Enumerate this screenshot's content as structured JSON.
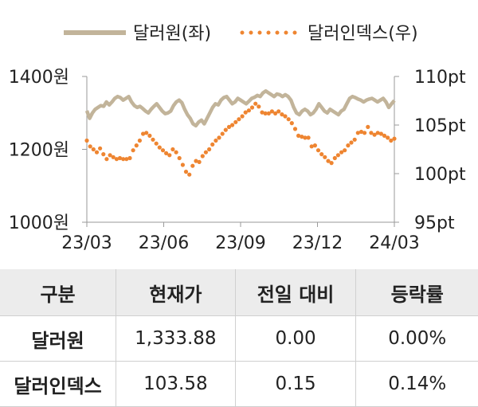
{
  "chart_data": {
    "type": "line",
    "series": [
      {
        "name": "달러원(좌)",
        "axis": "left",
        "color": "#c2b49a",
        "style": "solid",
        "values": [
          1306,
          1285,
          1300,
          1310,
          1315,
          1320,
          1318,
          1330,
          1322,
          1330,
          1340,
          1345,
          1342,
          1335,
          1340,
          1345,
          1330,
          1320,
          1315,
          1318,
          1312,
          1305,
          1300,
          1310,
          1318,
          1325,
          1315,
          1305,
          1298,
          1300,
          1305,
          1320,
          1330,
          1335,
          1328,
          1310,
          1295,
          1285,
          1270,
          1265,
          1275,
          1280,
          1270,
          1285,
          1300,
          1315,
          1325,
          1322,
          1335,
          1342,
          1345,
          1335,
          1325,
          1330,
          1340,
          1335,
          1330,
          1325,
          1332,
          1340,
          1343,
          1348,
          1345,
          1355,
          1360,
          1355,
          1350,
          1345,
          1352,
          1350,
          1345,
          1350,
          1345,
          1335,
          1315,
          1300,
          1295,
          1305,
          1310,
          1305,
          1295,
          1300,
          1310,
          1325,
          1315,
          1305,
          1300,
          1310,
          1305,
          1300,
          1295,
          1305,
          1310,
          1325,
          1340,
          1345,
          1342,
          1338,
          1335,
          1330,
          1335,
          1338,
          1340,
          1335,
          1330,
          1335,
          1340,
          1330,
          1315,
          1325,
          1334
        ]
      },
      {
        "name": "달러인덱스(우)",
        "axis": "right",
        "color": "#ee8531",
        "style": "dotted",
        "values": [
          103.4,
          102.8,
          102.5,
          102.2,
          102.6,
          102.0,
          101.5,
          101.9,
          101.7,
          101.5,
          101.6,
          101.5,
          101.5,
          101.6,
          102.4,
          102.9,
          103.4,
          104.1,
          104.2,
          103.9,
          103.5,
          103.1,
          102.7,
          102.4,
          102.1,
          101.9,
          102.5,
          102.2,
          101.6,
          100.9,
          100.2,
          99.9,
          100.8,
          101.3,
          101.2,
          101.8,
          102.2,
          102.5,
          103.0,
          103.4,
          103.7,
          104.1,
          104.5,
          104.8,
          105.0,
          105.3,
          105.6,
          105.9,
          106.3,
          106.5,
          106.8,
          107.2,
          106.9,
          106.3,
          106.2,
          106.2,
          106.4,
          106.2,
          106.4,
          106.1,
          105.9,
          105.6,
          105.2,
          104.6,
          103.9,
          103.8,
          103.7,
          103.7,
          102.8,
          102.9,
          102.4,
          102.0,
          101.7,
          101.3,
          101.1,
          101.6,
          101.9,
          102.2,
          102.4,
          102.9,
          103.2,
          103.5,
          104.2,
          104.3,
          104.2,
          104.8,
          104.2,
          104.0,
          104.2,
          104.1,
          103.9,
          103.7,
          103.4,
          103.6
        ]
      }
    ],
    "x_ticks": [
      "23/03",
      "23/06",
      "23/09",
      "23/12",
      "24/03"
    ],
    "y_left": {
      "ticks": [
        "1000원",
        "1200원",
        "1400원"
      ],
      "values": [
        1000,
        1200,
        1400
      ],
      "ylim": [
        1000,
        1400
      ]
    },
    "y_right": {
      "ticks": [
        "95pt",
        "100pt",
        "105pt",
        "110pt"
      ],
      "values": [
        95,
        100,
        105,
        110
      ],
      "ylim": [
        95,
        110
      ]
    },
    "legend_position": "top",
    "grid": false
  },
  "table": {
    "headers": [
      "구분",
      "현재가",
      "전일 대비",
      "등락률"
    ],
    "rows": [
      [
        "달러원",
        "1,333.88",
        "0.00",
        "0.00%"
      ],
      [
        "달러인덱스",
        "103.58",
        "0.15",
        "0.14%"
      ]
    ]
  }
}
